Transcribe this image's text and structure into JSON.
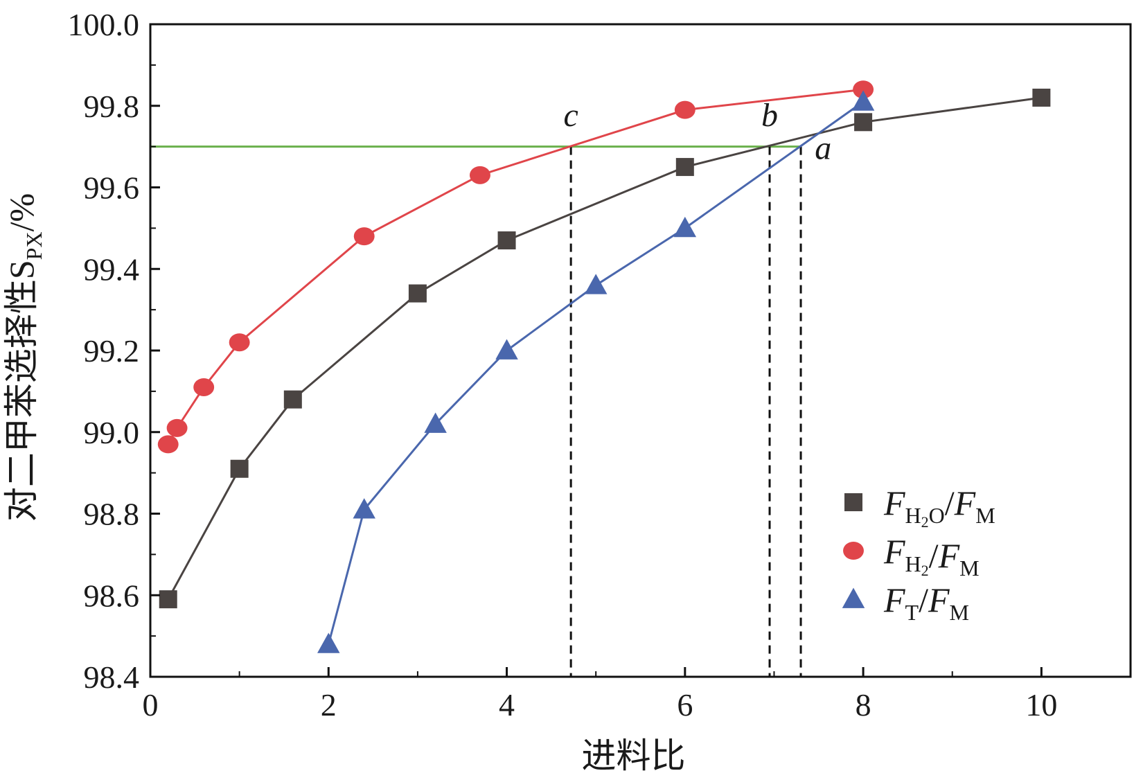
{
  "chart_data": {
    "type": "line",
    "title": "",
    "xlabel": "进料比",
    "ylabel": {
      "main": "对二甲苯选择性S",
      "sub": "PX",
      "unit": "/%"
    },
    "xlim": [
      0,
      11
    ],
    "ylim": [
      98.4,
      100.0
    ],
    "x_ticks": [
      0,
      2,
      4,
      6,
      8,
      10
    ],
    "x_tick_labels": [
      "0",
      "2",
      "4",
      "6",
      "8",
      "10"
    ],
    "y_ticks": [
      98.4,
      98.6,
      98.8,
      99.0,
      99.2,
      99.4,
      99.6,
      99.8,
      100.0
    ],
    "y_tick_labels": [
      "98.4",
      "98.6",
      "98.8",
      "99.0",
      "99.2",
      "99.4",
      "99.6",
      "99.8",
      "100.0"
    ],
    "grid": false,
    "legend_position": "lower-right",
    "series": [
      {
        "name": "F_H2O/F_M",
        "legend_label": {
          "f1": "F",
          "s1": "H",
          "s1sub": "2",
          "s1tail": "O",
          "slash": "/",
          "f2": "F",
          "s2": "M"
        },
        "marker": "square",
        "color": "#4a4442",
        "x": [
          0.2,
          1.0,
          1.6,
          3.0,
          4.0,
          6.0,
          8.0,
          10.0
        ],
        "y": [
          98.59,
          98.91,
          99.08,
          99.34,
          99.47,
          99.65,
          99.76,
          99.82
        ]
      },
      {
        "name": "F_H2/F_M",
        "legend_label": {
          "f1": "F",
          "s1": "H",
          "s1sub": "2",
          "s1tail": "",
          "slash": "/",
          "f2": "F",
          "s2": "M"
        },
        "marker": "circle",
        "color": "#e0454a",
        "x": [
          0.2,
          0.3,
          0.6,
          1.0,
          2.4,
          3.7,
          6.0,
          8.0
        ],
        "y": [
          98.97,
          99.01,
          99.11,
          99.22,
          99.48,
          99.63,
          99.79,
          99.84
        ]
      },
      {
        "name": "F_T/F_M",
        "legend_label": {
          "f1": "F",
          "s1": "T",
          "s1sub": "",
          "s1tail": "",
          "slash": "/",
          "f2": "F",
          "s2": "M"
        },
        "marker": "triangle",
        "color": "#4a67ad",
        "x": [
          2.0,
          2.4,
          3.2,
          4.0,
          5.0,
          6.0,
          8.0
        ],
        "y": [
          98.48,
          98.81,
          99.02,
          99.2,
          99.36,
          99.5,
          99.81
        ]
      }
    ],
    "reference_line": {
      "y": 99.7,
      "x_from": 0,
      "x_to": 7.3,
      "color": "#6ab04c"
    },
    "vertical_markers": [
      {
        "label": "c",
        "x": 4.72,
        "label_x": 4.72,
        "label_y": 99.75
      },
      {
        "label": "b",
        "x": 6.95,
        "label_x": 6.95,
        "label_y": 99.75
      },
      {
        "label": "a",
        "x": 7.3,
        "label_x": 7.55,
        "label_y": 99.67
      }
    ]
  }
}
